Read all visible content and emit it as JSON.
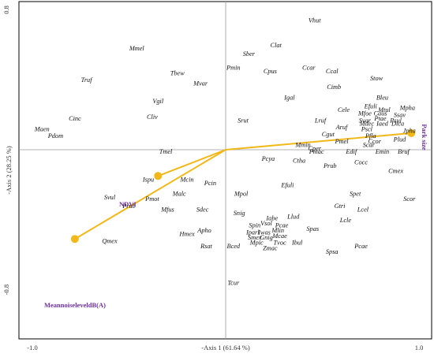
{
  "chart_data": {
    "type": "scatter",
    "xlabel": "-Axis 1 (61.64 %)",
    "ylabel": "-Axis 2 (28.25 %)",
    "xlim": [
      -1.0,
      1.0
    ],
    "ylim": [
      -0.9,
      0.82
    ],
    "x_ticks": [
      {
        "value": -1.0,
        "label": "-1.0"
      },
      {
        "value": 1.0,
        "label": "1.0"
      }
    ],
    "y_ticks": [
      {
        "value": 0.8,
        "label": "0.8"
      },
      {
        "value": -0.8,
        "label": "-0.8"
      }
    ],
    "reference_lines": {
      "x": 0,
      "y": 0
    },
    "grid": false,
    "species": [
      {
        "label": "Vhut",
        "x": 0.46,
        "y": 0.74
      },
      {
        "label": "Clat",
        "x": 0.26,
        "y": 0.6
      },
      {
        "label": "Sber",
        "x": 0.12,
        "y": 0.55
      },
      {
        "label": "Mmel",
        "x": -0.46,
        "y": 0.58
      },
      {
        "label": "Pmin",
        "x": 0.04,
        "y": 0.47
      },
      {
        "label": "Cpus",
        "x": 0.23,
        "y": 0.45
      },
      {
        "label": "Ccar",
        "x": 0.43,
        "y": 0.47
      },
      {
        "label": "Ccal",
        "x": 0.55,
        "y": 0.45
      },
      {
        "label": "Stow",
        "x": 0.78,
        "y": 0.41
      },
      {
        "label": "Tbew",
        "x": -0.25,
        "y": 0.44
      },
      {
        "label": "Mvar",
        "x": -0.13,
        "y": 0.38
      },
      {
        "label": "Truf",
        "x": -0.72,
        "y": 0.4
      },
      {
        "label": "Cimb",
        "x": 0.56,
        "y": 0.36
      },
      {
        "label": "Igal",
        "x": 0.33,
        "y": 0.3
      },
      {
        "label": "Bleu",
        "x": 0.81,
        "y": 0.3
      },
      {
        "label": "Vgil",
        "x": -0.35,
        "y": 0.28
      },
      {
        "label": "Efuli",
        "x": 0.75,
        "y": 0.25
      },
      {
        "label": "Mtul",
        "x": 0.82,
        "y": 0.23
      },
      {
        "label": "Mpha",
        "x": 0.94,
        "y": 0.24
      },
      {
        "label": "Cele",
        "x": 0.61,
        "y": 0.23
      },
      {
        "label": "Mfoe",
        "x": 0.72,
        "y": 0.21
      },
      {
        "label": "Caus",
        "x": 0.8,
        "y": 0.21
      },
      {
        "label": "Ssav",
        "x": 0.9,
        "y": 0.2
      },
      {
        "label": "Svar",
        "x": 0.72,
        "y": 0.17
      },
      {
        "label": "Ptae",
        "x": 0.8,
        "y": 0.18
      },
      {
        "label": "Psul",
        "x": 0.88,
        "y": 0.17
      },
      {
        "label": "Cinc",
        "x": -0.78,
        "y": 0.18
      },
      {
        "label": "Cliv",
        "x": -0.38,
        "y": 0.19
      },
      {
        "label": "Srut",
        "x": 0.09,
        "y": 0.17
      },
      {
        "label": "Lruf",
        "x": 0.49,
        "y": 0.17
      },
      {
        "label": "Mdec",
        "x": 0.73,
        "y": 0.15
      },
      {
        "label": "Iaed",
        "x": 0.81,
        "y": 0.15
      },
      {
        "label": "Dica",
        "x": 0.89,
        "y": 0.15
      },
      {
        "label": "Aruf",
        "x": 0.6,
        "y": 0.13
      },
      {
        "label": "Pscl",
        "x": 0.73,
        "y": 0.12
      },
      {
        "label": "Maen",
        "x": -0.95,
        "y": 0.12
      },
      {
        "label": "Pdom",
        "x": -0.88,
        "y": 0.08
      },
      {
        "label": "Cgut",
        "x": 0.53,
        "y": 0.09
      },
      {
        "label": "Pfla",
        "x": 0.75,
        "y": 0.08
      },
      {
        "label": "Jpha",
        "x": 0.95,
        "y": 0.11
      },
      {
        "label": "Pmel",
        "x": 0.6,
        "y": 0.05
      },
      {
        "label": "Ccor",
        "x": 0.77,
        "y": 0.05
      },
      {
        "label": "Plud",
        "x": 0.9,
        "y": 0.06
      },
      {
        "label": "Mmin",
        "x": 0.4,
        "y": 0.03
      },
      {
        "label": "Cper",
        "x": 0.46,
        "y": 0.01
      },
      {
        "label": "Scar",
        "x": 0.74,
        "y": 0.03
      },
      {
        "label": "Pmac",
        "x": 0.47,
        "y": -0.01
      },
      {
        "label": "Edif",
        "x": 0.65,
        "y": -0.01
      },
      {
        "label": "Emin",
        "x": 0.81,
        "y": -0.01
      },
      {
        "label": "Bruf",
        "x": 0.92,
        "y": -0.01
      },
      {
        "label": "Tmel",
        "x": -0.31,
        "y": -0.01
      },
      {
        "label": "Pcya",
        "x": 0.22,
        "y": -0.05
      },
      {
        "label": "Ctha",
        "x": 0.38,
        "y": -0.06
      },
      {
        "label": "Cocc",
        "x": 0.7,
        "y": -0.07
      },
      {
        "label": "Prub",
        "x": 0.54,
        "y": -0.09
      },
      {
        "label": "Cmex",
        "x": 0.88,
        "y": -0.12
      },
      {
        "label": "Ispu",
        "x": -0.4,
        "y": -0.17
      },
      {
        "label": "Mcin",
        "x": -0.2,
        "y": -0.17
      },
      {
        "label": "Pcin",
        "x": -0.08,
        "y": -0.19
      },
      {
        "label": "Efuli",
        "x": 0.32,
        "y": -0.2
      },
      {
        "label": "Spet",
        "x": 0.67,
        "y": -0.25
      },
      {
        "label": "Scor",
        "x": 0.95,
        "y": -0.28
      },
      {
        "label": "Malc",
        "x": -0.24,
        "y": -0.25
      },
      {
        "label": "Mpol",
        "x": 0.08,
        "y": -0.25
      },
      {
        "label": "Svul",
        "x": -0.6,
        "y": -0.27
      },
      {
        "label": "Pmot",
        "x": -0.38,
        "y": -0.28
      },
      {
        "label": "Gtri",
        "x": 0.59,
        "y": -0.32
      },
      {
        "label": "Prub",
        "x": -0.5,
        "y": -0.32
      },
      {
        "label": "Mfus",
        "x": -0.3,
        "y": -0.34
      },
      {
        "label": "Sdec",
        "x": -0.12,
        "y": -0.34
      },
      {
        "label": "Lcel",
        "x": 0.71,
        "y": -0.34
      },
      {
        "label": "Snig",
        "x": 0.07,
        "y": -0.36
      },
      {
        "label": "Iabe",
        "x": 0.24,
        "y": -0.39
      },
      {
        "label": "Llud",
        "x": 0.35,
        "y": -0.38
      },
      {
        "label": "Lcle",
        "x": 0.62,
        "y": -0.4
      },
      {
        "label": "Spin",
        "x": 0.15,
        "y": -0.43
      },
      {
        "label": "Vsol",
        "x": 0.21,
        "y": -0.42
      },
      {
        "label": "Pcae",
        "x": 0.29,
        "y": -0.43
      },
      {
        "label": "Apho",
        "x": -0.11,
        "y": -0.46
      },
      {
        "label": "Iparl",
        "x": 0.14,
        "y": -0.47
      },
      {
        "label": "Iwas",
        "x": 0.2,
        "y": -0.47
      },
      {
        "label": "Mlin",
        "x": 0.27,
        "y": -0.46
      },
      {
        "label": "Spas",
        "x": 0.45,
        "y": -0.45
      },
      {
        "label": "Hmex",
        "x": -0.2,
        "y": -0.48
      },
      {
        "label": "Smex",
        "x": 0.15,
        "y": -0.5
      },
      {
        "label": "Gnig",
        "x": 0.21,
        "y": -0.5
      },
      {
        "label": "Mcae",
        "x": 0.28,
        "y": -0.49
      },
      {
        "label": "Qmex",
        "x": -0.6,
        "y": -0.52
      },
      {
        "label": "Mpic",
        "x": 0.16,
        "y": -0.53
      },
      {
        "label": "Tvoc",
        "x": 0.28,
        "y": -0.53
      },
      {
        "label": "Ibul",
        "x": 0.37,
        "y": -0.53
      },
      {
        "label": "Rsat",
        "x": -0.1,
        "y": -0.55
      },
      {
        "label": "Bced",
        "x": 0.04,
        "y": -0.55
      },
      {
        "label": "Zmac",
        "x": 0.23,
        "y": -0.56
      },
      {
        "label": "Pcae",
        "x": 0.7,
        "y": -0.55
      },
      {
        "label": "Spsa",
        "x": 0.55,
        "y": -0.58
      },
      {
        "label": "Tcur",
        "x": 0.04,
        "y": -0.76
      }
    ],
    "vectors": [
      {
        "name": "Park size",
        "x": 0.96,
        "y": 0.095
      },
      {
        "name": "NDVI",
        "x": -0.35,
        "y": -0.15
      },
      {
        "name": "Mean noise level dB(A)",
        "x": -0.78,
        "y": -0.51
      }
    ],
    "vector_labels": [
      {
        "text": "Park size",
        "rotate": 90
      },
      {
        "text": "NDVI",
        "rotate": 0
      },
      {
        "text": "MeannoiseleveldB(A)",
        "rotate": 0
      }
    ]
  }
}
